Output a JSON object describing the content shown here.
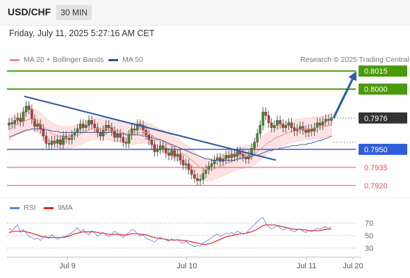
{
  "header": {
    "symbol": "USD/CHF",
    "timeframe": "30 MIN"
  },
  "timestamp": "Friday, July 11, 2025 5:27:16 AM CET",
  "legend": {
    "bollinger": {
      "label": "MA 20 + Bollinger Bands",
      "color": "#f08a8a"
    },
    "ma50": {
      "label": "MA 50",
      "color": "#2c4f8c"
    },
    "copyright": "Research © 2025 Trading Central"
  },
  "rsi_legend": {
    "rsi": {
      "label": "RSI",
      "color": "#5b7fd6"
    },
    "ma9": {
      "label": "9MA",
      "color": "#e02020"
    }
  },
  "chart_data": {
    "type": "candlestick",
    "instrument": "USD/CHF",
    "interval": "30 MIN",
    "x_ticks": [
      "Jul 9",
      "Jul 10",
      "Jul 11",
      "Jul 20"
    ],
    "price_range": [
      0.7913,
      0.8018
    ],
    "current_price": {
      "value": "0.7976",
      "color": "#333333"
    },
    "levels": [
      {
        "value": "0.8015",
        "type": "resistance",
        "color": "#4a9a0a"
      },
      {
        "value": "0.8000",
        "type": "resistance",
        "color": "#4a9a0a"
      },
      {
        "value": "0.7950",
        "type": "pivot",
        "color": "#2f5fd8"
      },
      {
        "value": "0.7935",
        "type": "support",
        "color": "#e05050"
      },
      {
        "value": "0.7920",
        "type": "support",
        "color": "#e05050"
      }
    ],
    "trendline": {
      "from": {
        "x": "Jul 9 early",
        "y": 0.7994
      },
      "to": {
        "x": "Jul 10 late",
        "y": 0.7941
      }
    },
    "forecast_arrow": {
      "from": 0.7976,
      "to": 0.8015
    },
    "closes": [
      0.7972,
      0.7971,
      0.7974,
      0.7976,
      0.7973,
      0.7981,
      0.7986,
      0.7983,
      0.7975,
      0.7969,
      0.7971,
      0.7967,
      0.7961,
      0.7955,
      0.7954,
      0.7957,
      0.7955,
      0.7958,
      0.7954,
      0.7961,
      0.7959,
      0.7958,
      0.7962,
      0.7964,
      0.7967,
      0.7971,
      0.7968,
      0.797,
      0.7974,
      0.7971,
      0.7968,
      0.7964,
      0.7961,
      0.7966,
      0.797,
      0.7968,
      0.7965,
      0.796,
      0.7963,
      0.796,
      0.7956,
      0.7955,
      0.7962,
      0.7967,
      0.7966,
      0.7971,
      0.797,
      0.7966,
      0.7962,
      0.7958,
      0.7954,
      0.7948,
      0.795,
      0.7953,
      0.7951,
      0.7947,
      0.7945,
      0.7949,
      0.7944,
      0.7946,
      0.7941,
      0.7937,
      0.7938,
      0.7933,
      0.7929,
      0.7926,
      0.7924,
      0.7925,
      0.793,
      0.7933,
      0.7936,
      0.7938,
      0.7941,
      0.7943,
      0.794,
      0.7942,
      0.7945,
      0.7943,
      0.7946,
      0.7944,
      0.7948,
      0.7946,
      0.7944,
      0.7942,
      0.7945,
      0.7951,
      0.7956,
      0.7963,
      0.797,
      0.7981,
      0.7978,
      0.7972,
      0.7968,
      0.797,
      0.7974,
      0.7971,
      0.7968,
      0.797,
      0.7972,
      0.7968,
      0.7965,
      0.7967,
      0.7969,
      0.7966,
      0.7964,
      0.7967,
      0.7965,
      0.7968,
      0.7972,
      0.797,
      0.7973,
      0.7975,
      0.7974,
      0.7976
    ],
    "ma20": [
      0.7966,
      0.7968,
      0.797,
      0.7971,
      0.7972,
      0.7973,
      0.7974,
      0.7975,
      0.7975,
      0.7974,
      0.7973,
      0.7971,
      0.7969,
      0.7967,
      0.7965,
      0.7963,
      0.7962,
      0.7961,
      0.796,
      0.796,
      0.796,
      0.796,
      0.796,
      0.7961,
      0.7962,
      0.7963,
      0.7964,
      0.7965,
      0.7966,
      0.7967,
      0.7967,
      0.7967,
      0.7967,
      0.7967,
      0.7967,
      0.7967,
      0.7966,
      0.7966,
      0.7965,
      0.7965,
      0.7964,
      0.7963,
      0.7963,
      0.7963,
      0.7963,
      0.7964,
      0.7964,
      0.7964,
      0.7964,
      0.7963,
      0.7962,
      0.796,
      0.7959,
      0.7958,
      0.7957,
      0.7955,
      0.7954,
      0.7953,
      0.7951,
      0.795,
      0.7948,
      0.7946,
      0.7945,
      0.7943,
      0.7941,
      0.7939,
      0.7937,
      0.7935,
      0.7934,
      0.7933,
      0.7933,
      0.7933,
      0.7934,
      0.7935,
      0.7936,
      0.7937,
      0.7938,
      0.7939,
      0.794,
      0.7941,
      0.7942,
      0.7943,
      0.7943,
      0.7944,
      0.7944,
      0.7945,
      0.7946,
      0.7948,
      0.795,
      0.7952,
      0.7954,
      0.7956,
      0.7957,
      0.7959,
      0.796,
      0.7961,
      0.7962,
      0.7963,
      0.7964,
      0.7965,
      0.7965,
      0.7966,
      0.7966,
      0.7967,
      0.7967,
      0.7967,
      0.7967,
      0.7968,
      0.7968,
      0.7968,
      0.7969,
      0.7969,
      0.797,
      0.797
    ],
    "ma50": [
      0.796,
      0.7961,
      0.7962,
      0.7963,
      0.7964,
      0.7965,
      0.7966,
      0.7966,
      0.7967,
      0.7967,
      0.7967,
      0.7967,
      0.7966,
      0.7966,
      0.7966,
      0.7965,
      0.7965,
      0.7965,
      0.7964,
      0.7964,
      0.7964,
      0.7964,
      0.7964,
      0.7964,
      0.7964,
      0.7964,
      0.7964,
      0.7964,
      0.7964,
      0.7964,
      0.7964,
      0.7964,
      0.7964,
      0.7964,
      0.7964,
      0.7964,
      0.7964,
      0.7963,
      0.7963,
      0.7963,
      0.7963,
      0.7962,
      0.7962,
      0.7962,
      0.7962,
      0.7962,
      0.7962,
      0.7961,
      0.7961,
      0.796,
      0.796,
      0.7959,
      0.7958,
      0.7958,
      0.7957,
      0.7956,
      0.7955,
      0.7954,
      0.7953,
      0.7952,
      0.7951,
      0.795,
      0.7949,
      0.7948,
      0.7947,
      0.7946,
      0.7945,
      0.7944,
      0.7943,
      0.7942,
      0.7942,
      0.7941,
      0.7941,
      0.7941,
      0.7941,
      0.7941,
      0.7941,
      0.7941,
      0.7941,
      0.7941,
      0.7942,
      0.7942,
      0.7943,
      0.7943,
      0.7943,
      0.7944,
      0.7945,
      0.7945,
      0.7946,
      0.7947,
      0.7948,
      0.7949,
      0.7949,
      0.795,
      0.795,
      0.7951,
      0.7951,
      0.7952,
      0.7952,
      0.7953,
      0.7953,
      0.7953,
      0.7954,
      0.7954,
      0.7954,
      0.7955,
      0.7955,
      0.7956,
      0.7957,
      0.7957,
      0.7958,
      0.7959,
      0.796,
      0.7961
    ],
    "bb_width": 0.0009,
    "rsi": {
      "levels": [
        "70",
        "50",
        "30"
      ],
      "range": [
        20,
        80
      ],
      "rsi": [
        62,
        58,
        63,
        67,
        55,
        60,
        54,
        49,
        47,
        44,
        46,
        42,
        48,
        50,
        45,
        52,
        47,
        44,
        47,
        48,
        49,
        52,
        55,
        58,
        63,
        56,
        60,
        54,
        51,
        58,
        54,
        49,
        52,
        55,
        51,
        48,
        52,
        57,
        54,
        50,
        47,
        52,
        55,
        60,
        58,
        53,
        49,
        51,
        45,
        44,
        42,
        40,
        44,
        47,
        45,
        43,
        41,
        45,
        42,
        44,
        40,
        38,
        41,
        37,
        35,
        32,
        34,
        33,
        38,
        41,
        43,
        47,
        50,
        52,
        49,
        51,
        54,
        52,
        55,
        53,
        57,
        55,
        52,
        54,
        58,
        63,
        67,
        72,
        76,
        79,
        70,
        64,
        61,
        63,
        66,
        62,
        59,
        61,
        63,
        58,
        56,
        59,
        61,
        57,
        55,
        58,
        56,
        59,
        62,
        60,
        63,
        64,
        62,
        64
      ],
      "ma9": [
        55,
        56,
        57,
        57,
        57,
        57,
        56,
        55,
        54,
        52,
        51,
        49,
        48,
        47,
        47,
        47,
        47,
        47,
        47,
        47,
        48,
        49,
        51,
        53,
        54,
        55,
        56,
        56,
        56,
        56,
        56,
        55,
        54,
        54,
        53,
        52,
        52,
        52,
        52,
        52,
        51,
        51,
        52,
        53,
        53,
        53,
        52,
        52,
        51,
        50,
        48,
        47,
        46,
        45,
        45,
        44,
        43,
        43,
        43,
        43,
        43,
        42,
        42,
        41,
        40,
        39,
        38,
        37,
        36,
        36,
        37,
        38,
        40,
        42,
        44,
        46,
        48,
        49,
        50,
        51,
        52,
        53,
        53,
        54,
        55,
        56,
        58,
        60,
        63,
        66,
        67,
        67,
        67,
        67,
        66,
        65,
        64,
        63,
        62,
        61,
        60,
        60,
        60,
        59,
        59,
        58,
        58,
        58,
        58,
        58,
        59,
        60,
        60,
        61
      ]
    }
  }
}
